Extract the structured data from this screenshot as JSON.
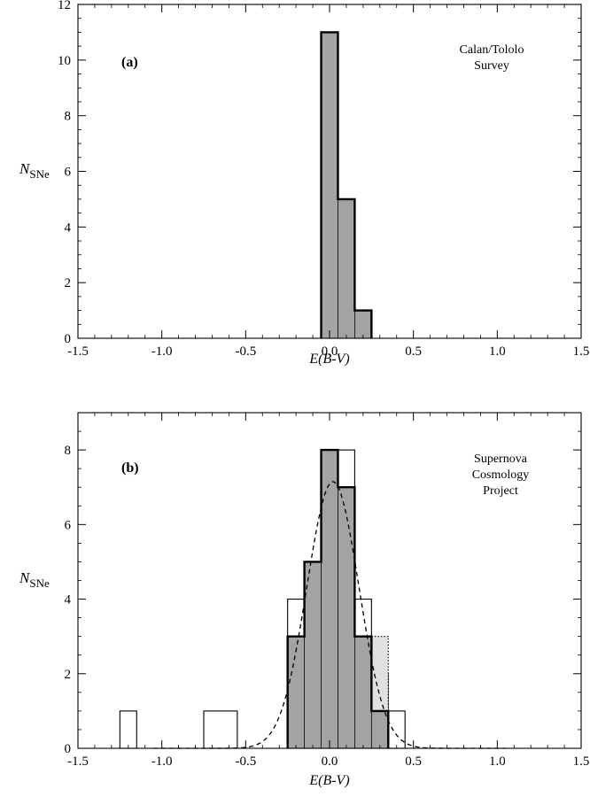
{
  "chart_data": [
    {
      "type": "bar",
      "panel_label": "(a)",
      "annotation_lines": [
        "Calan/Tololo",
        "Survey"
      ],
      "xlabel": "E(B-V)",
      "ylabel_main": "N",
      "ylabel_sub": "SNe",
      "xlim": [
        -1.5,
        1.5
      ],
      "ylim": [
        0,
        12
      ],
      "x_ticks": [
        "-1.5",
        "-1.0",
        "-0.5",
        "0.0",
        "0.5",
        "1.0",
        "1.5"
      ],
      "y_ticks": [
        "0",
        "2",
        "4",
        "6",
        "8",
        "10",
        "12"
      ],
      "series": [
        {
          "style": "filled-dark",
          "bins": [
            {
              "x0": -0.05,
              "x1": 0.05,
              "count": 11
            },
            {
              "x0": 0.05,
              "x1": 0.15,
              "count": 5
            },
            {
              "x0": 0.15,
              "x1": 0.25,
              "count": 1
            }
          ]
        }
      ]
    },
    {
      "type": "bar",
      "panel_label": "(b)",
      "annotation_lines": [
        "Supernova",
        "Cosmology",
        "Project"
      ],
      "xlabel": "E(B-V)",
      "ylabel_main": "N",
      "ylabel_sub": "SNe",
      "xlim": [
        -1.5,
        1.5
      ],
      "ylim": [
        0,
        9
      ],
      "x_ticks": [
        "-1.5",
        "-1.0",
        "-0.5",
        "0.0",
        "0.5",
        "1.0",
        "1.5"
      ],
      "y_ticks": [
        "0",
        "2",
        "4",
        "6",
        "8"
      ],
      "series": [
        {
          "style": "open-thin",
          "bins": [
            {
              "x0": -1.25,
              "x1": -1.15,
              "count": 1
            },
            {
              "x0": -0.75,
              "x1": -0.55,
              "count": 1
            },
            {
              "x0": -0.25,
              "x1": -0.15,
              "count": 4
            },
            {
              "x0": -0.15,
              "x1": -0.05,
              "count": 5
            },
            {
              "x0": -0.05,
              "x1": 0.05,
              "count": 8
            },
            {
              "x0": 0.05,
              "x1": 0.15,
              "count": 8
            },
            {
              "x0": 0.15,
              "x1": 0.25,
              "count": 4
            },
            {
              "x0": 0.25,
              "x1": 0.35,
              "count": 2
            },
            {
              "x0": 0.35,
              "x1": 0.45,
              "count": 1
            }
          ]
        },
        {
          "style": "filled-light-dotted",
          "bins": [
            {
              "x0": -0.25,
              "x1": -0.15,
              "count": 3
            },
            {
              "x0": -0.15,
              "x1": -0.05,
              "count": 5
            },
            {
              "x0": -0.05,
              "x1": 0.05,
              "count": 8
            },
            {
              "x0": 0.05,
              "x1": 0.15,
              "count": 7
            },
            {
              "x0": 0.15,
              "x1": 0.25,
              "count": 3
            },
            {
              "x0": 0.25,
              "x1": 0.35,
              "count": 3
            }
          ]
        },
        {
          "style": "filled-dark",
          "bins": [
            {
              "x0": -0.25,
              "x1": -0.15,
              "count": 3
            },
            {
              "x0": -0.15,
              "x1": -0.05,
              "count": 5
            },
            {
              "x0": -0.05,
              "x1": 0.05,
              "count": 8
            },
            {
              "x0": 0.05,
              "x1": 0.15,
              "count": 7
            },
            {
              "x0": 0.15,
              "x1": 0.25,
              "count": 3
            },
            {
              "x0": 0.25,
              "x1": 0.35,
              "count": 1
            }
          ]
        }
      ],
      "curve": {
        "style": "dashed",
        "form": "gaussian",
        "mean": 0.02,
        "sigma": 0.155,
        "amplitude": 7.15,
        "x_range": [
          -1.05,
          1.05
        ]
      },
      "colors": {
        "dark_fill": "#a3a3a3",
        "light_fill": "#e1e1e1"
      }
    }
  ]
}
